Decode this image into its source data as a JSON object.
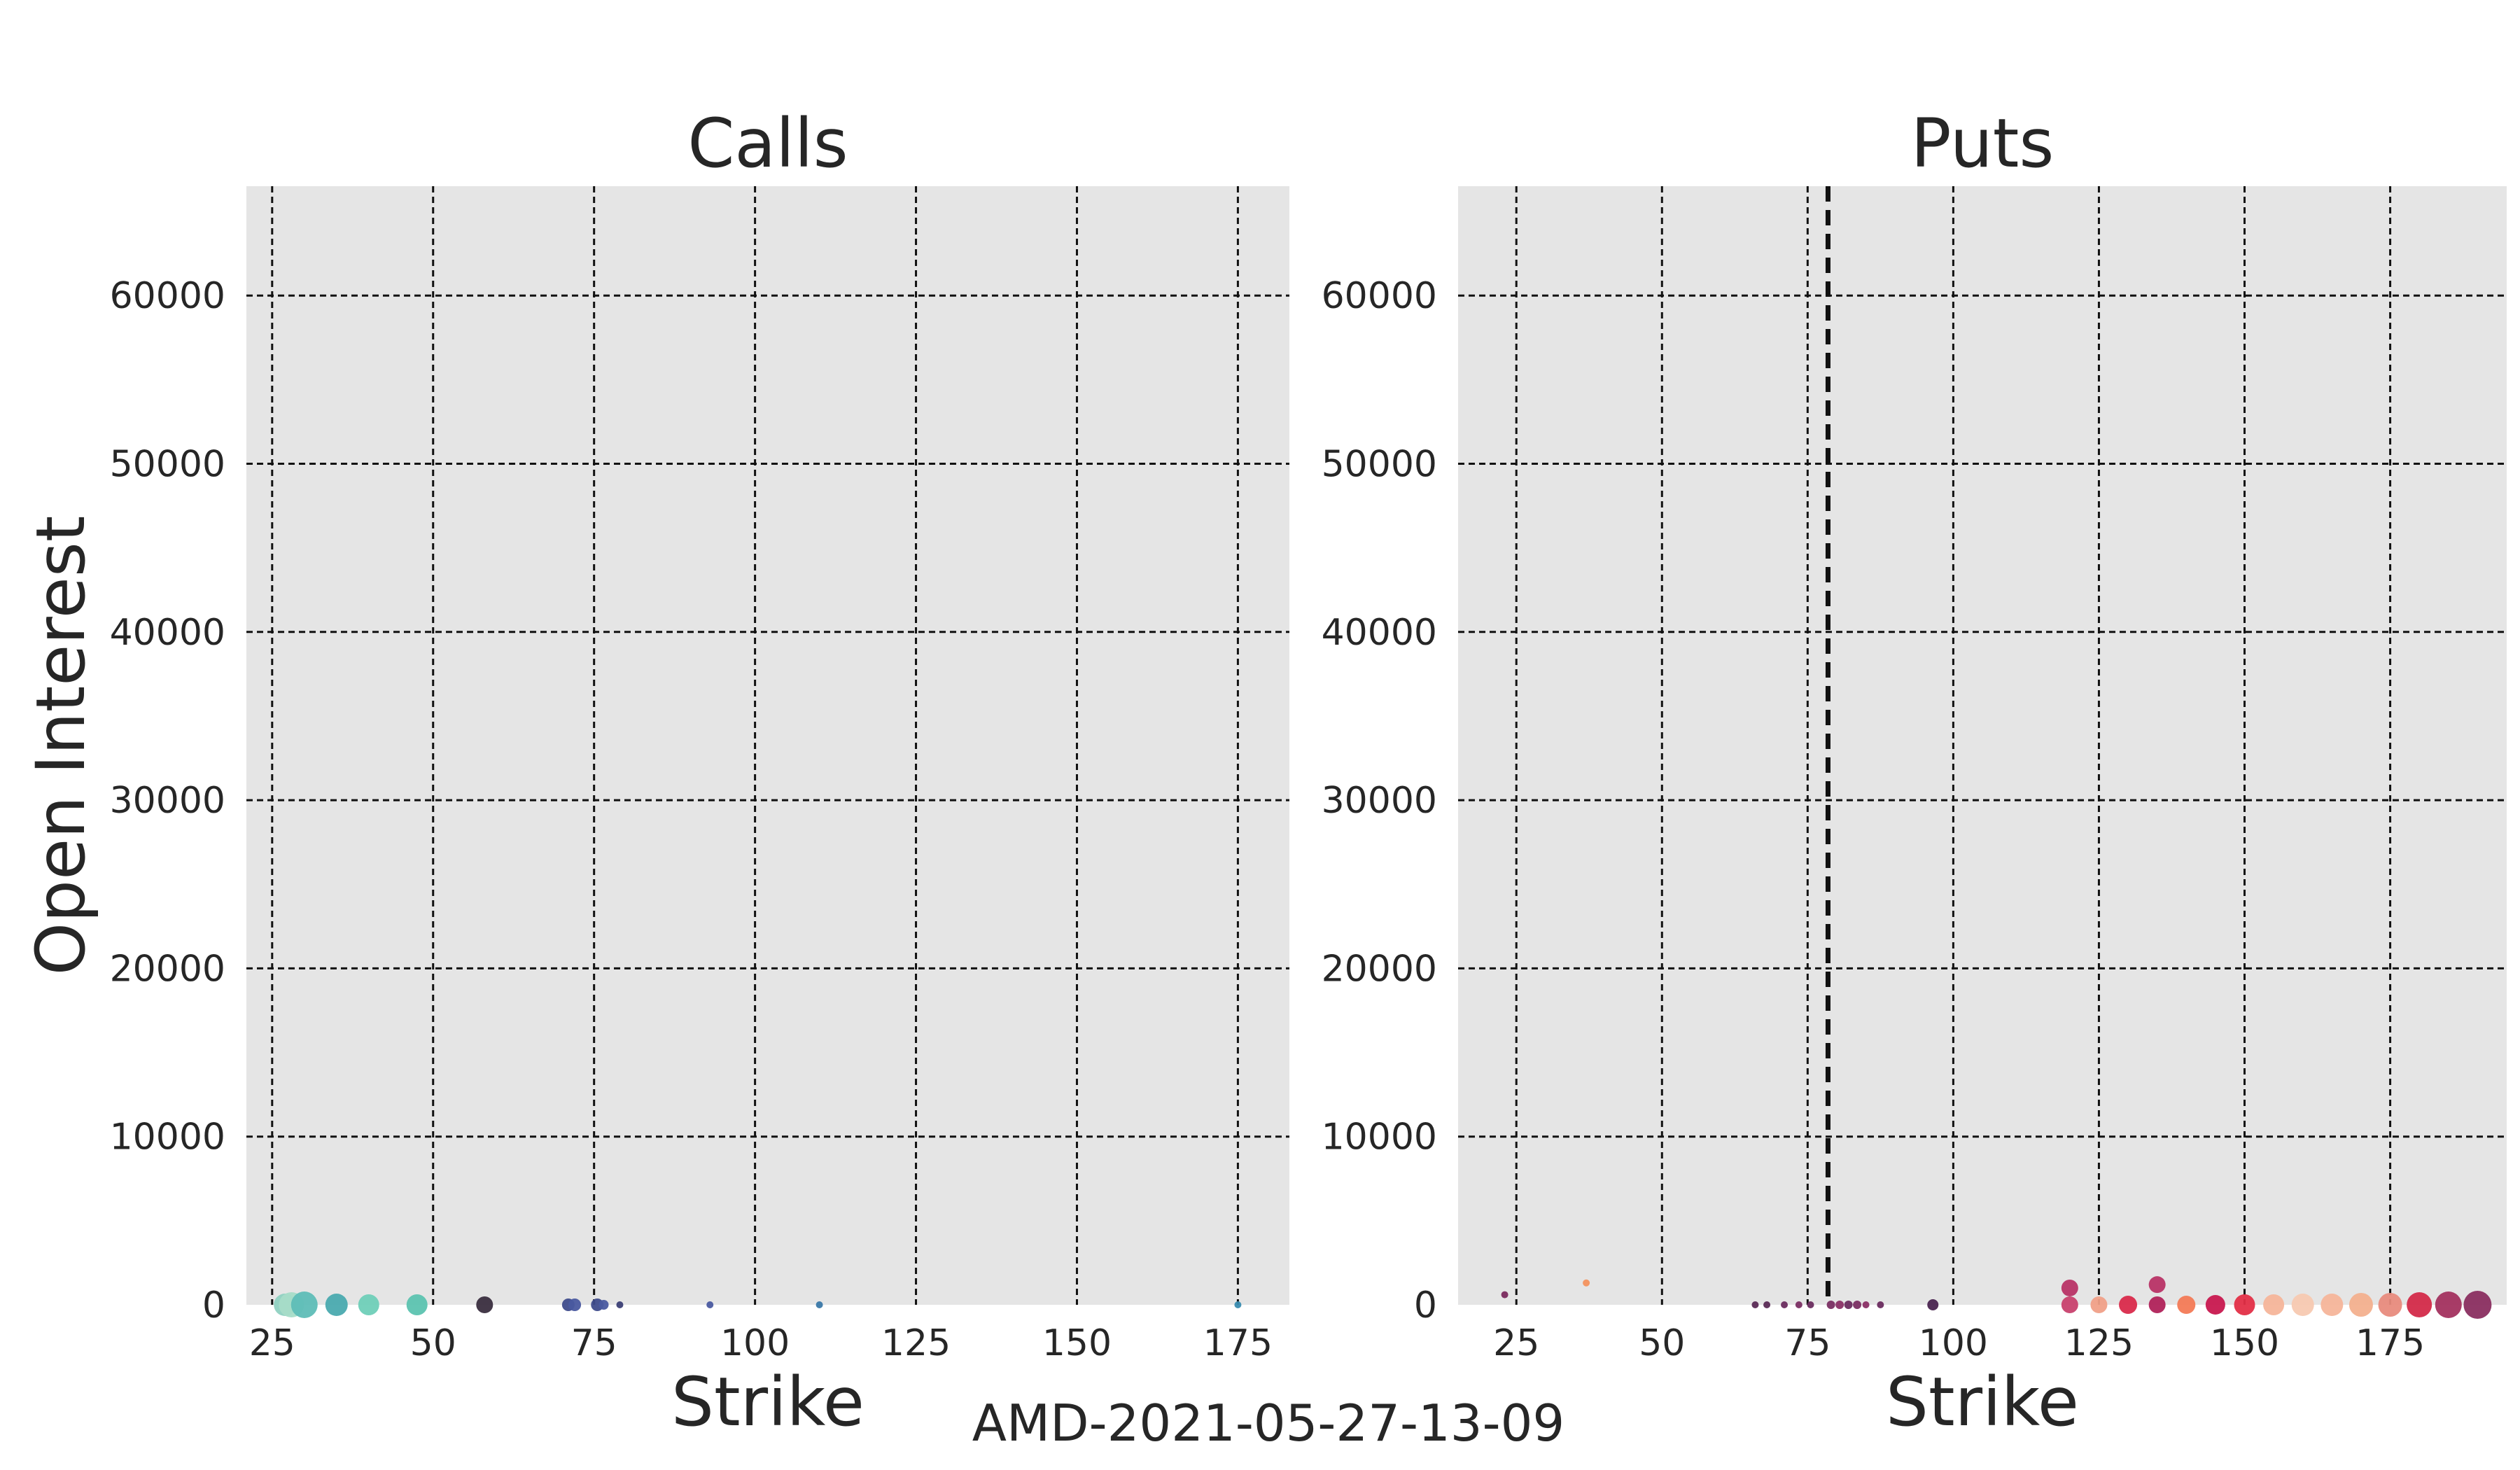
{
  "footer": {
    "title": "AMD-2021-05-27-13-09"
  },
  "chart_data": [
    {
      "type": "scatter",
      "title": "Calls",
      "xlabel": "Strike",
      "ylabel": "Open Interest",
      "xlim": [
        21,
        183
      ],
      "ylim": [
        0,
        66500
      ],
      "xticks": [
        25,
        50,
        75,
        100,
        125,
        150,
        175
      ],
      "yticks": [
        0,
        10000,
        20000,
        30000,
        40000,
        50000,
        60000
      ],
      "grid": true,
      "legend": "none",
      "points": [
        {
          "x": 27,
          "y": 0,
          "size": 16,
          "color": "#8fd1c1"
        },
        {
          "x": 28,
          "y": 0,
          "size": 18,
          "color": "#a6dcc8"
        },
        {
          "x": 30,
          "y": 0,
          "size": 19,
          "color": "#5ebdb7"
        },
        {
          "x": 35,
          "y": 0,
          "size": 16,
          "color": "#4aaaaf"
        },
        {
          "x": 40,
          "y": 0,
          "size": 15,
          "color": "#6fcfb8"
        },
        {
          "x": 47.5,
          "y": 0,
          "size": 15,
          "color": "#5cc3b0"
        },
        {
          "x": 58,
          "y": 0,
          "size": 12,
          "color": "#3a2e3f"
        },
        {
          "x": 71,
          "y": 0,
          "size": 9,
          "color": "#3f4c8c"
        },
        {
          "x": 72,
          "y": 0,
          "size": 9,
          "color": "#4a5aa0"
        },
        {
          "x": 75.5,
          "y": 0,
          "size": 9,
          "color": "#3f4c8c"
        },
        {
          "x": 76.5,
          "y": 0,
          "size": 7,
          "color": "#4a5aa0"
        },
        {
          "x": 79,
          "y": 0,
          "size": 5,
          "color": "#3b3f75"
        },
        {
          "x": 93,
          "y": 0,
          "size": 5,
          "color": "#4a5aa0"
        },
        {
          "x": 110,
          "y": 0,
          "size": 5,
          "color": "#3a78a8"
        },
        {
          "x": 175,
          "y": 0,
          "size": 5,
          "color": "#3a8cb0"
        }
      ]
    },
    {
      "type": "scatter",
      "title": "Puts",
      "xlabel": "Strike",
      "ylabel": "",
      "xlim": [
        15,
        195
      ],
      "ylim": [
        0,
        66500
      ],
      "xticks": [
        25,
        50,
        75,
        100,
        125,
        150,
        175
      ],
      "yticks": [
        0,
        10000,
        20000,
        30000,
        40000,
        50000,
        60000
      ],
      "grid": true,
      "legend": "none",
      "reference_line_x": 78.5,
      "points": [
        {
          "x": 23,
          "y": 600,
          "size": 5,
          "color": "#7a2a5e"
        },
        {
          "x": 37,
          "y": 1300,
          "size": 5,
          "color": "#f3925e"
        },
        {
          "x": 66,
          "y": 0,
          "size": 5,
          "color": "#5a2a55"
        },
        {
          "x": 68,
          "y": 0,
          "size": 5,
          "color": "#5a2a55"
        },
        {
          "x": 71,
          "y": 0,
          "size": 5,
          "color": "#6a2c5f"
        },
        {
          "x": 73.5,
          "y": 0,
          "size": 5,
          "color": "#7a2f63"
        },
        {
          "x": 75.5,
          "y": 0,
          "size": 5,
          "color": "#6a2c5f"
        },
        {
          "x": 79,
          "y": 0,
          "size": 6,
          "color": "#7a2f63"
        },
        {
          "x": 80.5,
          "y": 0,
          "size": 6,
          "color": "#8a3066"
        },
        {
          "x": 82,
          "y": 0,
          "size": 6,
          "color": "#6a2c5f"
        },
        {
          "x": 83.5,
          "y": 0,
          "size": 6,
          "color": "#7a2f63"
        },
        {
          "x": 85,
          "y": 0,
          "size": 5,
          "color": "#8a3066"
        },
        {
          "x": 87.5,
          "y": 0,
          "size": 5,
          "color": "#6a2c5f"
        },
        {
          "x": 96.5,
          "y": 0,
          "size": 8,
          "color": "#4a2450"
        },
        {
          "x": 120,
          "y": 1000,
          "size": 12,
          "color": "#b83366"
        },
        {
          "x": 120,
          "y": 0,
          "size": 12,
          "color": "#c8416e"
        },
        {
          "x": 125,
          "y": 0,
          "size": 12,
          "color": "#f0a088"
        },
        {
          "x": 130,
          "y": 0,
          "size": 13,
          "color": "#d92a4b"
        },
        {
          "x": 135,
          "y": 1200,
          "size": 12,
          "color": "#b83366"
        },
        {
          "x": 135,
          "y": 0,
          "size": 12,
          "color": "#b0225a"
        },
        {
          "x": 140,
          "y": 0,
          "size": 13,
          "color": "#f37a56"
        },
        {
          "x": 145,
          "y": 0,
          "size": 14,
          "color": "#c8184f"
        },
        {
          "x": 150,
          "y": 0,
          "size": 15,
          "color": "#e32f47"
        },
        {
          "x": 155,
          "y": 0,
          "size": 15,
          "color": "#f5b59a"
        },
        {
          "x": 160,
          "y": 0,
          "size": 16,
          "color": "#f7c9b1"
        },
        {
          "x": 165,
          "y": 0,
          "size": 16,
          "color": "#f5b59a"
        },
        {
          "x": 170,
          "y": 0,
          "size": 17,
          "color": "#f3b08e"
        },
        {
          "x": 175,
          "y": 0,
          "size": 17,
          "color": "#e88b7d"
        },
        {
          "x": 180,
          "y": 0,
          "size": 18,
          "color": "#d32a49"
        },
        {
          "x": 185,
          "y": 0,
          "size": 19,
          "color": "#a3315f"
        },
        {
          "x": 190,
          "y": 0,
          "size": 20,
          "color": "#8a2e60"
        }
      ]
    }
  ]
}
